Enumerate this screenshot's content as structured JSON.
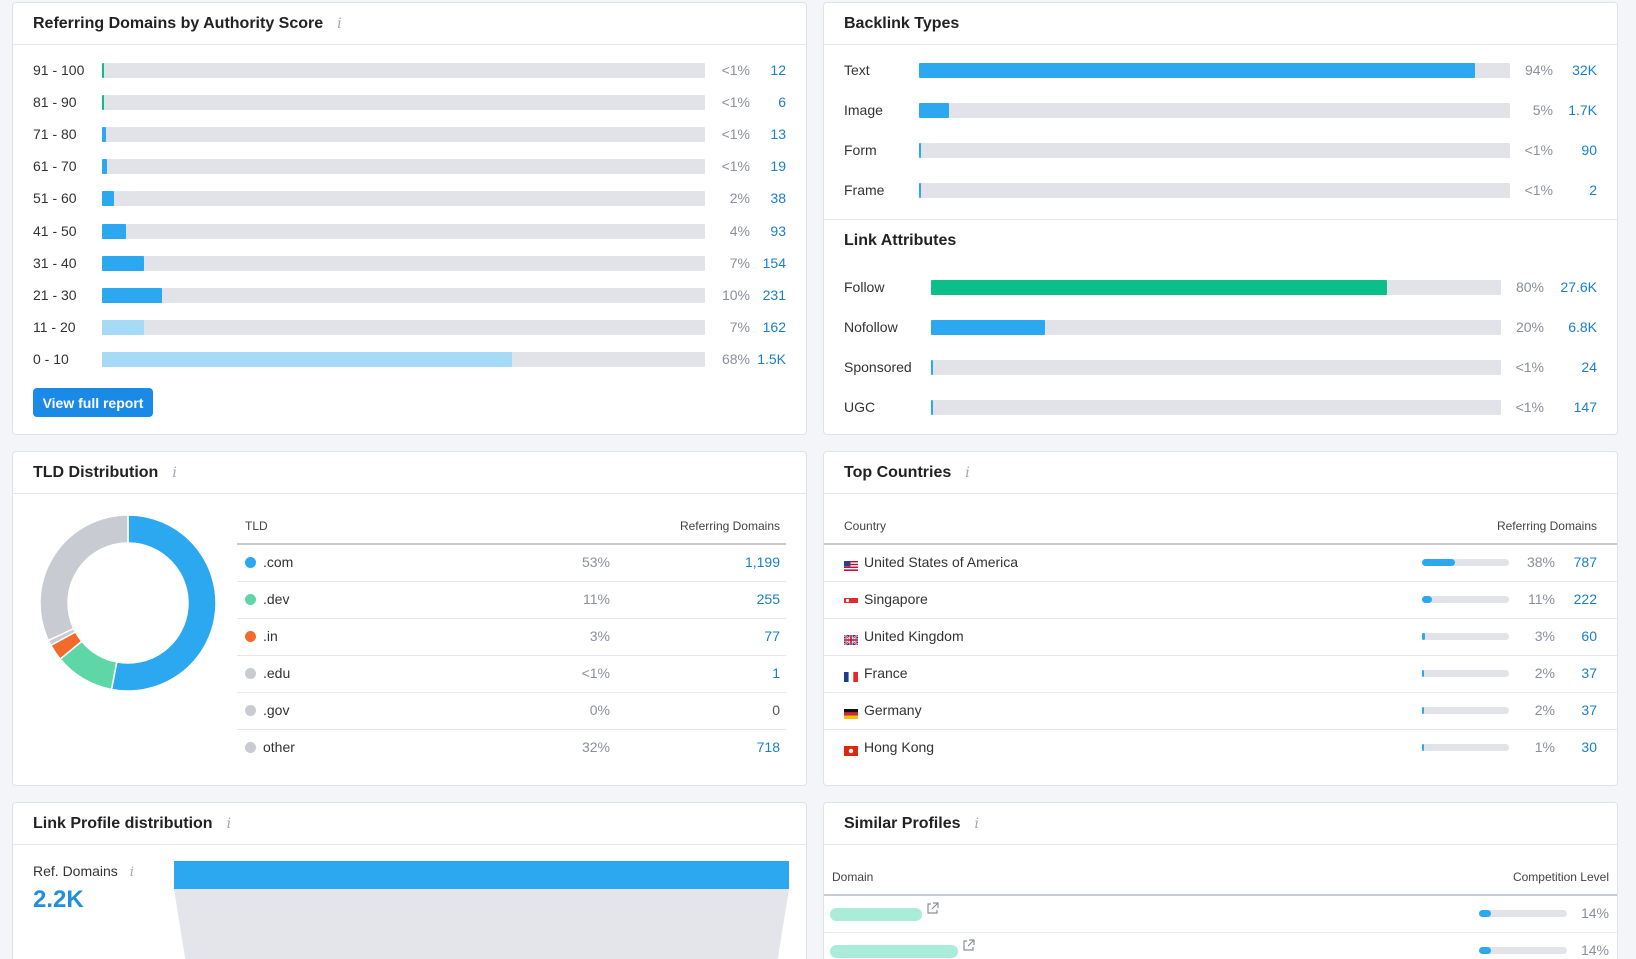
{
  "authority": {
    "title": "Referring Domains by Authority Score",
    "rows": [
      {
        "label": "91 - 100",
        "pct": "<1%",
        "count": "12",
        "fraction": 0.003,
        "color": "#0cbe89"
      },
      {
        "label": "81 - 90",
        "pct": "<1%",
        "count": "6",
        "fraction": 0.003,
        "color": "#0cbe89"
      },
      {
        "label": "71 - 80",
        "pct": "<1%",
        "count": "13",
        "fraction": 0.006,
        "color": "#2ba8f0"
      },
      {
        "label": "61 - 70",
        "pct": "<1%",
        "count": "19",
        "fraction": 0.008,
        "color": "#2ba8f0"
      },
      {
        "label": "51 - 60",
        "pct": "2%",
        "count": "38",
        "fraction": 0.02,
        "color": "#2ba8f0"
      },
      {
        "label": "41 - 50",
        "pct": "4%",
        "count": "93",
        "fraction": 0.04,
        "color": "#2ba8f0"
      },
      {
        "label": "31 - 40",
        "pct": "7%",
        "count": "154",
        "fraction": 0.07,
        "color": "#2ba8f0"
      },
      {
        "label": "21 - 30",
        "pct": "10%",
        "count": "231",
        "fraction": 0.1,
        "color": "#2ba8f0"
      },
      {
        "label": "11 - 20",
        "pct": "7%",
        "count": "162",
        "fraction": 0.07,
        "color": "#a6dbf8"
      },
      {
        "label": "0 - 10",
        "pct": "68%",
        "count": "1.5K",
        "fraction": 0.68,
        "color": "#a6dbf8"
      }
    ],
    "button_label": "View full report"
  },
  "backlink_types": {
    "title": "Backlink Types",
    "rows": [
      {
        "label": "Text",
        "pct": "94%",
        "count": "32K",
        "fraction": 0.94,
        "color": "#2ba8f0"
      },
      {
        "label": "Image",
        "pct": "5%",
        "count": "1.7K",
        "fraction": 0.05,
        "color": "#2ba8f0"
      },
      {
        "label": "Form",
        "pct": "<1%",
        "count": "90",
        "fraction": 0.003,
        "color": "#2ba8f0"
      },
      {
        "label": "Frame",
        "pct": "<1%",
        "count": "2",
        "fraction": 0.003,
        "color": "#2ba8f0"
      }
    ]
  },
  "link_attributes": {
    "title": "Link Attributes",
    "rows": [
      {
        "label": "Follow",
        "pct": "80%",
        "count": "27.6K",
        "fraction": 0.8,
        "color": "#0cbe89"
      },
      {
        "label": "Nofollow",
        "pct": "20%",
        "count": "6.8K",
        "fraction": 0.2,
        "color": "#2ba8f0"
      },
      {
        "label": "Sponsored",
        "pct": "<1%",
        "count": "24",
        "fraction": 0.003,
        "color": "#2ba8f0"
      },
      {
        "label": "UGC",
        "pct": "<1%",
        "count": "147",
        "fraction": 0.003,
        "color": "#2ba8f0"
      }
    ]
  },
  "tld": {
    "title": "TLD Distribution",
    "col_tld": "TLD",
    "col_ref": "Referring Domains",
    "rows": [
      {
        "name": ".com",
        "pct": "53%",
        "count": "1,199",
        "share": 0.53,
        "color": "#2ba8f0"
      },
      {
        "name": ".dev",
        "pct": "11%",
        "count": "255",
        "share": 0.11,
        "color": "#5ed6a8"
      },
      {
        "name": ".in",
        "pct": "3%",
        "count": "77",
        "share": 0.03,
        "color": "#f26b2c"
      },
      {
        "name": ".edu",
        "pct": "<1%",
        "count": "1",
        "share": 0.01,
        "color": "#c8cbd2"
      },
      {
        "name": ".gov",
        "pct": "0%",
        "count": "0",
        "share": 0.0,
        "color": "#c8cbd2"
      },
      {
        "name": "other",
        "pct": "32%",
        "count": "718",
        "share": 0.32,
        "color": "#c8cbd2"
      }
    ]
  },
  "countries": {
    "title": "Top Countries",
    "col_country": "Country",
    "col_ref": "Referring Domains",
    "rows": [
      {
        "name": "United States of America",
        "pct": "38%",
        "count": "787",
        "fraction": 0.38,
        "flag": "us-flag-icon"
      },
      {
        "name": "Singapore",
        "pct": "11%",
        "count": "222",
        "fraction": 0.11,
        "flag": "sg-flag-icon"
      },
      {
        "name": "United Kingdom",
        "pct": "3%",
        "count": "60",
        "fraction": 0.03,
        "flag": "uk-flag-icon"
      },
      {
        "name": "France",
        "pct": "2%",
        "count": "37",
        "fraction": 0.02,
        "flag": "fr-flag-icon"
      },
      {
        "name": "Germany",
        "pct": "2%",
        "count": "37",
        "fraction": 0.02,
        "flag": "de-flag-icon"
      },
      {
        "name": "Hong Kong",
        "pct": "1%",
        "count": "30",
        "fraction": 0.01,
        "flag": "hk-flag-icon"
      }
    ]
  },
  "link_profile": {
    "title": "Link Profile distribution",
    "ref_label": "Ref. Domains",
    "ref_value": "2.2K"
  },
  "similar": {
    "title": "Similar Profiles",
    "col_domain": "Domain",
    "col_level": "Competition Level",
    "rows": [
      {
        "level": "14%",
        "fraction": 0.14
      },
      {
        "level": "14%",
        "fraction": 0.14
      }
    ]
  }
}
